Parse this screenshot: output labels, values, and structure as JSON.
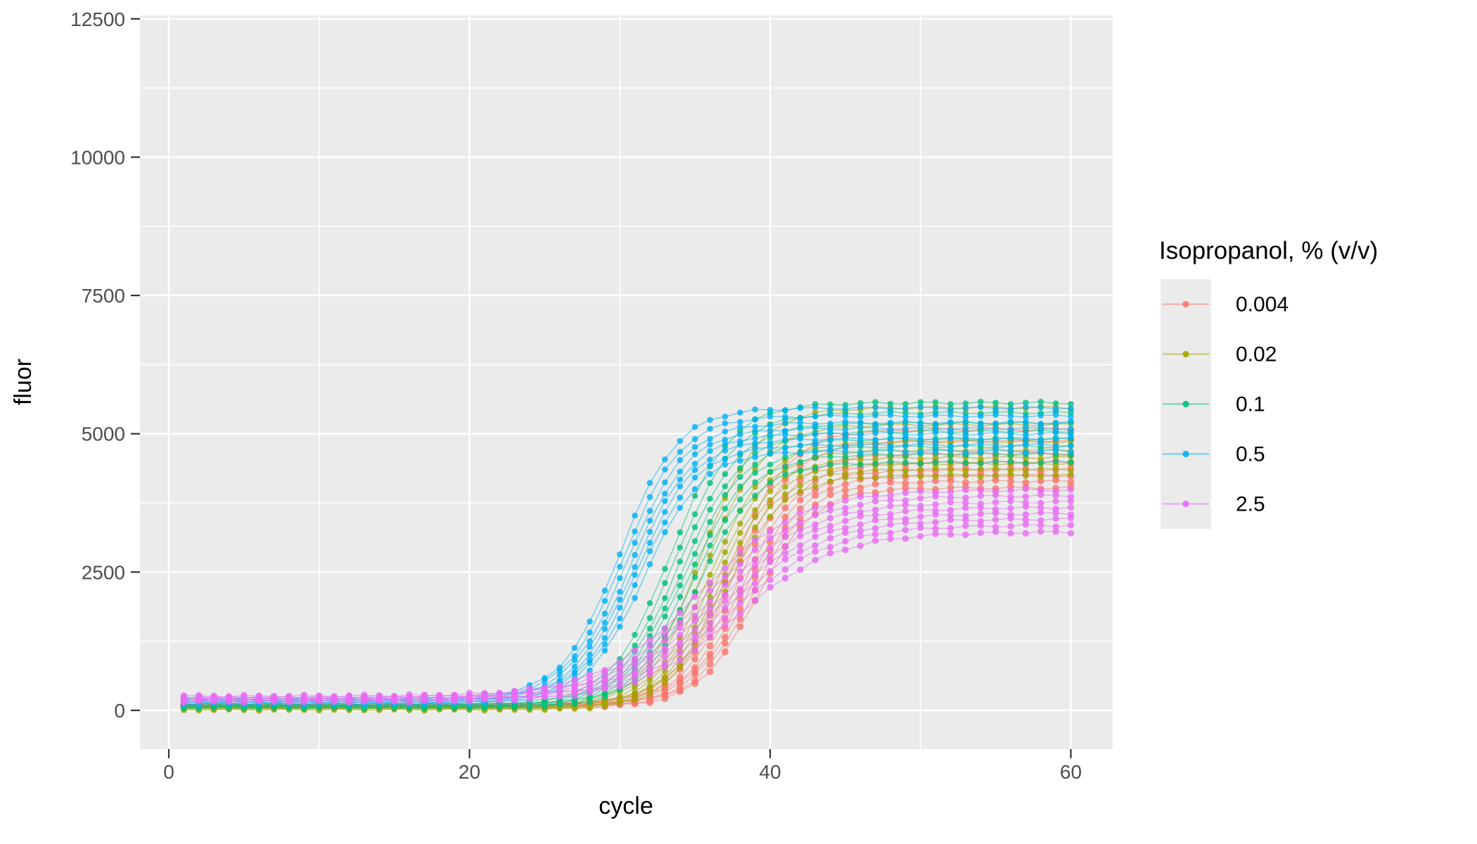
{
  "chart_data": {
    "type": "line",
    "title": "",
    "xlabel": "cycle",
    "ylabel": "fluor",
    "x_ticks": [
      0,
      20,
      40,
      60
    ],
    "x_minor_gridlines": [
      10,
      30,
      50
    ],
    "y_ticks": [
      0,
      2500,
      5000,
      7500,
      10000,
      12500
    ],
    "y_minor_gridlines": [
      1250,
      3750,
      6250,
      8750,
      11250
    ],
    "xlim": [
      -1.95,
      62.95
    ],
    "ylim": [
      -700,
      12560
    ],
    "grid": "on",
    "panel_background": "#EBEBEB",
    "gridline_color": "#FFFFFF",
    "tick_color": "#333333",
    "tick_label_color": "#4D4D4D",
    "axis_title_color": "#000000",
    "noise_amplitude": 22,
    "cycles": [
      1,
      2,
      3,
      4,
      5,
      6,
      7,
      8,
      9,
      10,
      11,
      12,
      13,
      14,
      15,
      16,
      17,
      18,
      19,
      20,
      21,
      22,
      23,
      24,
      25,
      26,
      27,
      28,
      29,
      30,
      31,
      32,
      33,
      34,
      35,
      36,
      37,
      38,
      39,
      40,
      41,
      42,
      43,
      44,
      45,
      46,
      47,
      48,
      49,
      50,
      51,
      52,
      53,
      54,
      55,
      56,
      57,
      58,
      59,
      60
    ],
    "legend": {
      "title": "Isopropanol, % (v/v)",
      "position": "right",
      "key_fill": "#EBEBEB",
      "entries": [
        {
          "label": "0.004",
          "color": "#F8766D"
        },
        {
          "label": "0.02",
          "color": "#A3A500"
        },
        {
          "label": "0.1",
          "color": "#00BF7D"
        },
        {
          "label": "0.5",
          "color": "#00B0F6"
        },
        {
          "label": "2.5",
          "color": "#E76BF3"
        }
      ]
    },
    "series": [
      {
        "name": "0.004",
        "color": "#F8766D",
        "point_radius": 5.0,
        "n_replicates": 8,
        "model": {
          "base": 90,
          "k": 0.52,
          "midpoint": 38.3
        },
        "replicate_amplitudes": [
          3960,
          4070,
          4170,
          4270,
          4390,
          4540,
          4760,
          4960
        ],
        "replicate_midpoint_offsets": [
          0.8,
          0.55,
          0.3,
          0.1,
          -0.1,
          -0.35,
          -0.6,
          -0.85
        ],
        "replicate_base_offsets": [
          -28,
          -20,
          -12,
          -4,
          4,
          12,
          20,
          28
        ],
        "mean_values": [
          90,
          90,
          90,
          90,
          90,
          90,
          90,
          90,
          90,
          90,
          90,
          90,
          90,
          90,
          90,
          90,
          90,
          90,
          90,
          90,
          91,
          91,
          92,
          93,
          94,
          97,
          102,
          111,
          125,
          149,
          188,
          252,
          356,
          520,
          768,
          1123,
          1590,
          2142,
          2715,
          3240,
          3663,
          3973,
          4185,
          4322,
          4407,
          4460,
          4492,
          4511,
          4522,
          4529,
          4533,
          4536,
          4537,
          4538,
          4539,
          4539,
          4540,
          4540,
          4540,
          4540
        ]
      },
      {
        "name": "0.02",
        "color": "#A3A500",
        "point_radius": 4.3,
        "n_replicates": 8,
        "model": {
          "base": 45,
          "k": 0.52,
          "midpoint": 36.3
        },
        "replicate_amplitudes": [
          4230,
          4330,
          4430,
          4530,
          4660,
          4800,
          5100,
          5400
        ],
        "replicate_midpoint_offsets": [
          0.7,
          0.5,
          0.3,
          0.1,
          -0.1,
          -0.3,
          -0.6,
          -0.9
        ],
        "replicate_base_offsets": [
          -28,
          -20,
          -12,
          -4,
          4,
          12,
          20,
          28
        ],
        "mean_values": [
          45,
          45,
          45,
          45,
          45,
          45,
          45,
          45,
          45,
          45,
          45,
          45,
          45,
          45,
          45,
          45,
          45,
          45,
          45,
          45,
          46,
          48,
          50,
          53,
          58,
          66,
          81,
          105,
          145,
          211,
          317,
          485,
          740,
          1103,
          1582,
          2147,
          2735,
          3272,
          3706,
          4024,
          4241,
          4381,
          4469,
          4523,
          4556,
          4575,
          4587,
          4594,
          4598,
          4601,
          4603,
          4604,
          4604,
          4605,
          4605,
          4605,
          4605,
          4605,
          4605,
          4605
        ]
      },
      {
        "name": "0.1",
        "color": "#00BF7D",
        "point_radius": 4.3,
        "n_replicates": 8,
        "model": {
          "base": 80,
          "k": 0.5,
          "midpoint": 34.3
        },
        "replicate_amplitudes": [
          4430,
          4570,
          4700,
          4830,
          4960,
          5100,
          5280,
          5450
        ],
        "replicate_midpoint_offsets": [
          0.9,
          0.6,
          0.35,
          0.1,
          -0.1,
          -0.35,
          -0.6,
          -0.9
        ],
        "replicate_base_offsets": [
          -28,
          -20,
          -12,
          -4,
          4,
          12,
          20,
          28
        ],
        "mean_values": [
          80,
          80,
          80,
          80,
          80,
          80,
          80,
          80,
          80,
          80,
          80,
          80,
          80,
          80,
          80,
          80,
          80,
          80,
          82,
          84,
          86,
          91,
          97,
          109,
          127,
          157,
          205,
          283,
          407,
          596,
          878,
          1270,
          1778,
          2370,
          2984,
          3548,
          4011,
          4357,
          4599,
          4759,
          4862,
          4927,
          4967,
          4992,
          5007,
          5016,
          5021,
          5025,
          5027,
          5028,
          5029,
          5029,
          5030,
          5030,
          5030,
          5030,
          5030,
          5030,
          5030,
          5030
        ]
      },
      {
        "name": "0.5",
        "color": "#00B0F6",
        "point_radius": 4.3,
        "n_replicates": 8,
        "model": {
          "base": 170,
          "k": 0.52,
          "midpoint": 30.8
        },
        "replicate_amplitudes": [
          4560,
          4660,
          4760,
          4840,
          4920,
          5010,
          5120,
          5250
        ],
        "replicate_midpoint_offsets": [
          0.8,
          0.55,
          0.35,
          0.15,
          -0.05,
          -0.3,
          -0.55,
          -0.8
        ],
        "replicate_base_offsets": [
          -45,
          -32,
          -20,
          -8,
          8,
          20,
          32,
          45
        ],
        "mean_values": [
          170,
          170,
          170,
          170,
          170,
          170,
          170,
          170,
          170,
          170,
          170,
          170,
          170,
          170,
          171,
          172,
          174,
          176,
          181,
          188,
          200,
          220,
          254,
          309,
          400,
          545,
          769,
          1100,
          1556,
          2125,
          2758,
          3373,
          3901,
          4307,
          4592,
          4782,
          4902,
          4976,
          5022,
          5049,
          5066,
          5076,
          5082,
          5085,
          5087,
          5088,
          5089,
          5089,
          5090,
          5090,
          5090,
          5090,
          5090,
          5090,
          5090,
          5090,
          5090,
          5090,
          5090,
          5090
        ]
      },
      {
        "name": "2.5",
        "color": "#E76BF3",
        "point_radius": 4.7,
        "n_replicates": 8,
        "model": {
          "base": 210,
          "k": 0.3,
          "midpoint": 36.5
        },
        "replicate_amplitudes": [
          3060,
          3170,
          3270,
          3360,
          3450,
          3540,
          3640,
          3730
        ],
        "replicate_midpoint_offsets": [
          1.2,
          0.8,
          0.45,
          0.15,
          -0.15,
          -0.45,
          -0.8,
          -1.2
        ],
        "replicate_base_offsets": [
          -45,
          -32,
          -20,
          -8,
          8,
          20,
          32,
          45
        ],
        "mean_values": [
          210,
          210,
          210,
          210,
          210,
          210,
          210,
          210,
          210,
          210,
          212,
          212,
          213,
          214,
          215,
          217,
          220,
          223,
          228,
          234,
          243,
          254,
          269,
          289,
          316,
          352,
          399,
          460,
          539,
          640,
          766,
          920,
          1104,
          1317,
          1553,
          1806,
          2064,
          2317,
          2553,
          2766,
          2950,
          3104,
          3230,
          3331,
          3410,
          3471,
          3518,
          3554,
          3581,
          3601,
          3616,
          3627,
          3636,
          3642,
          3647,
          3650,
          3653,
          3655,
          3656,
          3657
        ]
      }
    ]
  }
}
